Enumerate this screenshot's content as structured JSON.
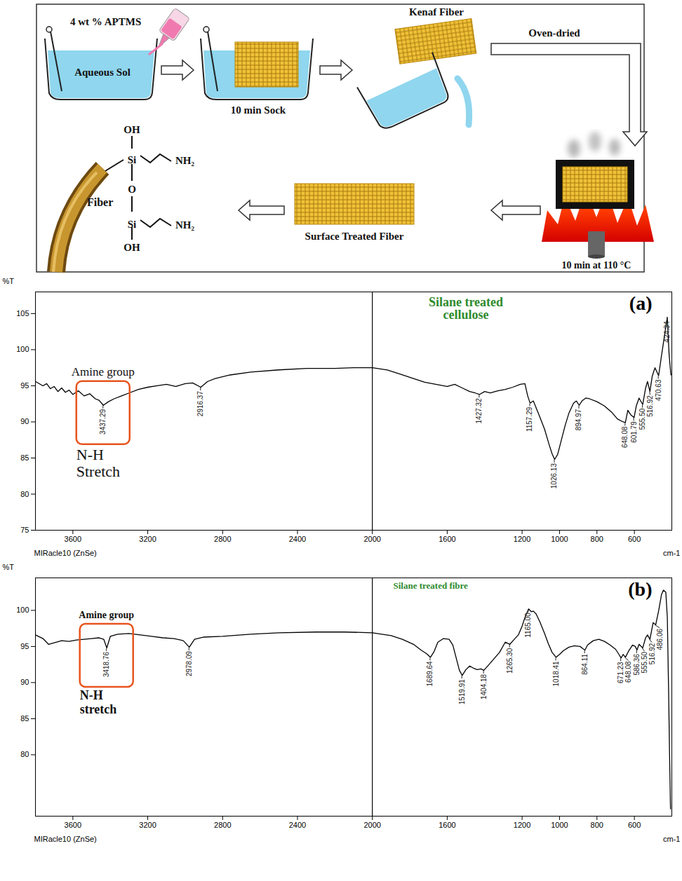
{
  "diagram": {
    "steps": {
      "reagent": "4 wt % APTMS",
      "solution": "Aqueous Sol",
      "soak": "10 min Sock",
      "fiber": "Kenaf Fiber",
      "drying": "Oven-dried",
      "curing": "10 min at 110 °C",
      "product": "Surface Treated Fiber"
    },
    "structure": {
      "substrate": "Fiber",
      "hydroxyl": "OH",
      "silicon": "Si",
      "amine": "NH₂",
      "oxygen": "O"
    }
  },
  "chart_data": [
    {
      "type": "line",
      "title": "Silane treated cellulose",
      "panel": "(a)",
      "x_label": "cm-1",
      "y_label": "%T",
      "instrument": "MIRacle10 (ZnSe)",
      "color": "#000000",
      "xlim": [
        3800,
        400
      ],
      "xticks": [
        3600,
        3200,
        2800,
        2400,
        2000,
        1600,
        1200,
        1000,
        800,
        600
      ],
      "ylim": [
        75,
        108
      ],
      "yticks": [
        75,
        80,
        85,
        90,
        95,
        100,
        105
      ],
      "reference_lines": [
        2000
      ],
      "annotations": {
        "group": "Amine group",
        "band": "N-H Stretch"
      },
      "x": [
        3800,
        3760,
        3740,
        3720,
        3700,
        3680,
        3660,
        3640,
        3620,
        3600,
        3570,
        3540,
        3510,
        3480,
        3460,
        3437.29,
        3410,
        3380,
        3340,
        3300,
        3250,
        3200,
        3150,
        3100,
        3050,
        3000,
        2960,
        2916.37,
        2880,
        2840,
        2760,
        2650,
        2500,
        2350,
        2200,
        2100,
        2000,
        1920,
        1850,
        1780,
        1720,
        1660,
        1600,
        1560,
        1520,
        1480,
        1450,
        1427.32,
        1400,
        1370,
        1330,
        1290,
        1250,
        1210,
        1185,
        1170,
        1157.29,
        1140,
        1110,
        1080,
        1055,
        1040,
        1026.13,
        1010,
        990,
        970,
        950,
        925,
        910,
        894.97,
        880,
        860,
        840,
        800,
        760,
        720,
        690,
        660,
        648.08,
        635,
        620,
        601.79,
        590,
        575,
        555.5,
        540,
        530,
        516.92,
        505,
        490,
        470.63,
        455,
        440,
        430,
        424.34,
        415,
        405
      ],
      "values": [
        95.6,
        95.0,
        95.3,
        94.6,
        94.9,
        94.2,
        94.7,
        94.1,
        94.4,
        93.8,
        94.3,
        93.6,
        93.9,
        93.2,
        93.0,
        92.3,
        92.8,
        93.2,
        93.6,
        94.0,
        94.5,
        94.8,
        95.0,
        95.2,
        94.9,
        95.3,
        95.4,
        94.8,
        95.6,
        96.0,
        96.5,
        96.9,
        97.2,
        97.4,
        97.4,
        97.5,
        97.5,
        97.2,
        96.6,
        96.0,
        95.5,
        95.2,
        94.9,
        95.2,
        94.7,
        94.2,
        94.0,
        93.8,
        94.2,
        94.0,
        94.3,
        94.5,
        94.8,
        95.2,
        95.3,
        93.6,
        92.6,
        92.9,
        91.0,
        89.0,
        86.8,
        85.6,
        84.8,
        85.5,
        87.5,
        89.5,
        91.2,
        92.6,
        92.9,
        92.3,
        92.9,
        93.3,
        93.2,
        92.8,
        92.2,
        91.3,
        90.4,
        90.0,
        89.9,
        91.6,
        91.0,
        90.6,
        92.2,
        93.3,
        92.4,
        94.7,
        95.6,
        94.2,
        96.3,
        97.5,
        96.4,
        99.2,
        101.8,
        103.5,
        104.5,
        99.5,
        96.5
      ],
      "peaks": {
        "x": [
          3437.29,
          2916.37,
          1427.32,
          1157.29,
          1026.13,
          894.97,
          648.08,
          601.79,
          555.5,
          516.92,
          470.63,
          424.34
        ],
        "y": [
          92.3,
          94.8,
          93.8,
          92.6,
          84.8,
          92.3,
          89.9,
          90.6,
          92.4,
          94.2,
          96.4,
          104.5
        ],
        "labels": [
          "3437.29",
          "2916.37",
          "1427.32",
          "1157.29",
          "1026.13",
          "894.97",
          "648.08",
          "601.79",
          "555.50",
          "516.92",
          "470.63",
          "424.34"
        ]
      }
    },
    {
      "type": "line",
      "title": "Silane treated fibre",
      "panel": "(b)",
      "x_label": "cm-1",
      "y_label": "%T",
      "instrument": "MIRacle10 (ZnSe)",
      "color": "#000000",
      "xlim": [
        3800,
        400
      ],
      "xticks": [
        3600,
        3200,
        2800,
        2400,
        2000,
        1600,
        1200,
        1000,
        800,
        600
      ],
      "ylim": [
        71.5,
        104.5
      ],
      "yticks": [
        80,
        85,
        90,
        95,
        100
      ],
      "reference_lines": [
        2000
      ],
      "annotations": {
        "group": "Amine group",
        "band": "N-H stretch"
      },
      "x": [
        3800,
        3760,
        3730,
        3700,
        3660,
        3620,
        3580,
        3540,
        3500,
        3460,
        3435,
        3418.76,
        3400,
        3360,
        3300,
        3240,
        3180,
        3120,
        3060,
        3010,
        2978.09,
        2950,
        2900,
        2800,
        2650,
        2500,
        2300,
        2150,
        2000,
        1900,
        1840,
        1780,
        1740,
        1710,
        1689.64,
        1670,
        1650,
        1620,
        1590,
        1570,
        1550,
        1535,
        1519.91,
        1500,
        1480,
        1460,
        1440,
        1420,
        1404.18,
        1380,
        1350,
        1320,
        1290,
        1265.3,
        1245,
        1220,
        1200,
        1185,
        1165,
        1150,
        1140,
        1125,
        1105,
        1080,
        1060,
        1040,
        1018.41,
        1000,
        980,
        950,
        920,
        890,
        875,
        864.11,
        850,
        820,
        790,
        760,
        730,
        700,
        680,
        671.23,
        660,
        648.08,
        630,
        610,
        595,
        586.36,
        575,
        555.5,
        540,
        530,
        516.92,
        500,
        486.06,
        470,
        455,
        445,
        432,
        424,
        418,
        412,
        407
      ],
      "values": [
        96.6,
        96.1,
        95.3,
        95.5,
        95.8,
        95.7,
        95.9,
        96.0,
        96.1,
        96.2,
        96.0,
        94.8,
        96.4,
        96.7,
        96.8,
        96.6,
        96.4,
        96.2,
        96.1,
        95.8,
        94.9,
        96.0,
        96.3,
        96.4,
        96.7,
        96.9,
        97.0,
        97.0,
        96.9,
        96.5,
        96.0,
        95.3,
        94.5,
        94.0,
        93.5,
        94.3,
        95.6,
        96.1,
        96.0,
        95.2,
        93.2,
        91.7,
        91.0,
        91.8,
        92.3,
        92.0,
        91.8,
        91.9,
        91.7,
        92.4,
        93.3,
        94.2,
        95.6,
        95.3,
        95.9,
        96.6,
        97.8,
        99.0,
        100.2,
        99.8,
        99.9,
        99.5,
        98.4,
        96.8,
        95.4,
        94.2,
        93.5,
        93.9,
        94.4,
        94.9,
        95.1,
        95.0,
        94.7,
        94.5,
        95.2,
        95.8,
        96.0,
        95.7,
        95.2,
        94.6,
        93.8,
        93.4,
        93.9,
        93.5,
        94.4,
        95.2,
        95.0,
        94.5,
        95.3,
        94.8,
        96.2,
        96.6,
        96.0,
        98.3,
        98.0,
        100.0,
        102.2,
        102.8,
        102.5,
        99.0,
        90.0,
        80.0,
        72.5
      ],
      "peaks": {
        "x": [
          3418.76,
          2978.09,
          1689.64,
          1519.91,
          1404.18,
          1265.3,
          1165,
          1018.41,
          864.11,
          671.23,
          648.08,
          586.36,
          555.5,
          516.92,
          486.06
        ],
        "y": [
          94.8,
          94.9,
          93.5,
          91.0,
          91.7,
          95.3,
          100.2,
          93.5,
          94.5,
          93.4,
          93.5,
          94.5,
          94.8,
          96.0,
          98.0
        ],
        "labels": [
          "3418.76",
          "2978.09",
          "1689.64",
          "1519.91",
          "1404.18",
          "1265.30",
          "1165.00",
          "1018.41",
          "864.11",
          "671.23",
          "648.08",
          "586.36",
          "555.50",
          "516.92",
          "486.06"
        ]
      }
    }
  ]
}
